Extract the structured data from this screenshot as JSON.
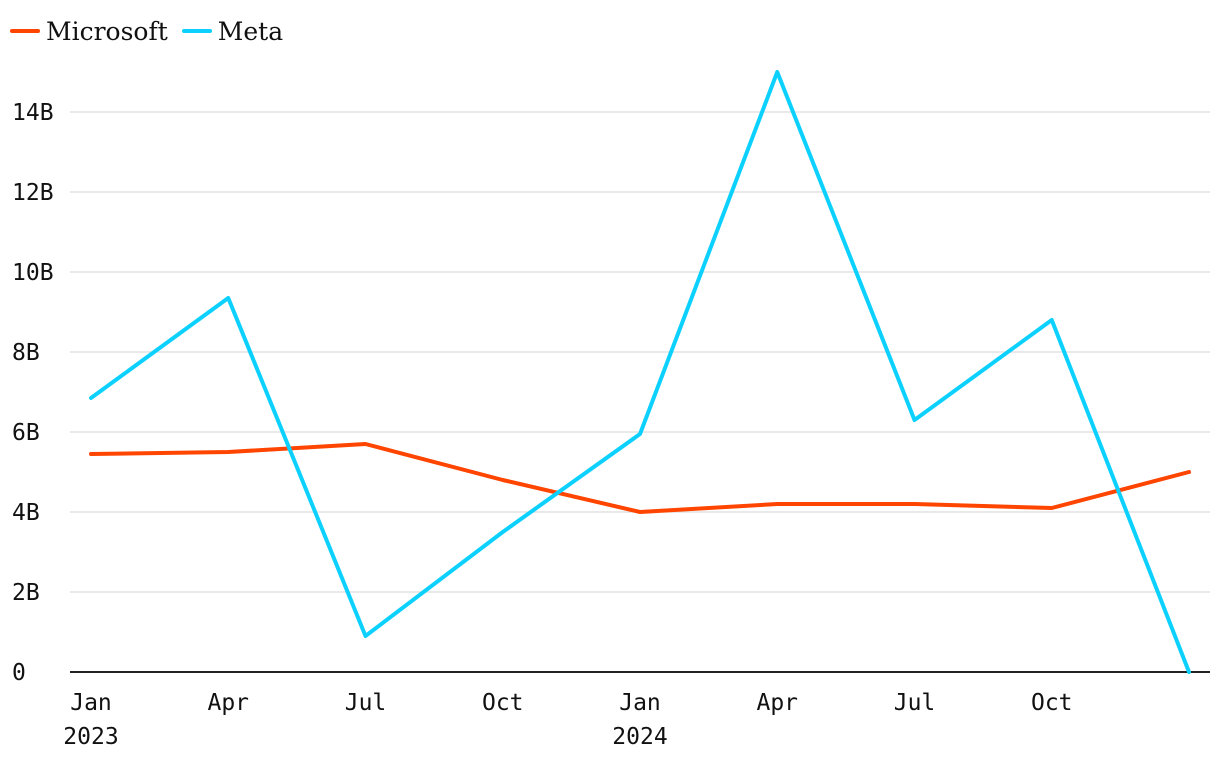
{
  "chart_data": {
    "type": "line",
    "title": "",
    "xlabel": "",
    "ylabel": "",
    "x": [
      "2023-01",
      "2023-04",
      "2023-07",
      "2023-10",
      "2024-01",
      "2024-04",
      "2024-07",
      "2024-10",
      "2025-01"
    ],
    "x_ticks": [
      {
        "month": "Jan",
        "year": "2023"
      },
      {
        "month": "Apr",
        "year": ""
      },
      {
        "month": "Jul",
        "year": ""
      },
      {
        "month": "Oct",
        "year": ""
      },
      {
        "month": "Jan",
        "year": "2024"
      },
      {
        "month": "Apr",
        "year": ""
      },
      {
        "month": "Jul",
        "year": ""
      },
      {
        "month": "Oct",
        "year": ""
      }
    ],
    "ylim": [
      0,
      15000000000
    ],
    "y_ticks": [
      {
        "value": 0,
        "label": "0"
      },
      {
        "value": 2000000000,
        "label": "2B"
      },
      {
        "value": 4000000000,
        "label": "4B"
      },
      {
        "value": 6000000000,
        "label": "6B"
      },
      {
        "value": 8000000000,
        "label": "8B"
      },
      {
        "value": 10000000000,
        "label": "10B"
      },
      {
        "value": 12000000000,
        "label": "12B"
      },
      {
        "value": 14000000000,
        "label": "14B"
      }
    ],
    "grid": true,
    "legend_position": "top-left",
    "series": [
      {
        "name": "Microsoft",
        "color": "#ff4500",
        "values": [
          5450000000,
          5500000000,
          5700000000,
          4800000000,
          4000000000,
          4200000000,
          4200000000,
          4100000000,
          5000000000
        ]
      },
      {
        "name": "Meta",
        "color": "#0cd1ff",
        "values": [
          6850000000,
          9350000000,
          900000000,
          3500000000,
          5950000000,
          15000000000,
          6300000000,
          8800000000,
          0
        ]
      }
    ]
  }
}
